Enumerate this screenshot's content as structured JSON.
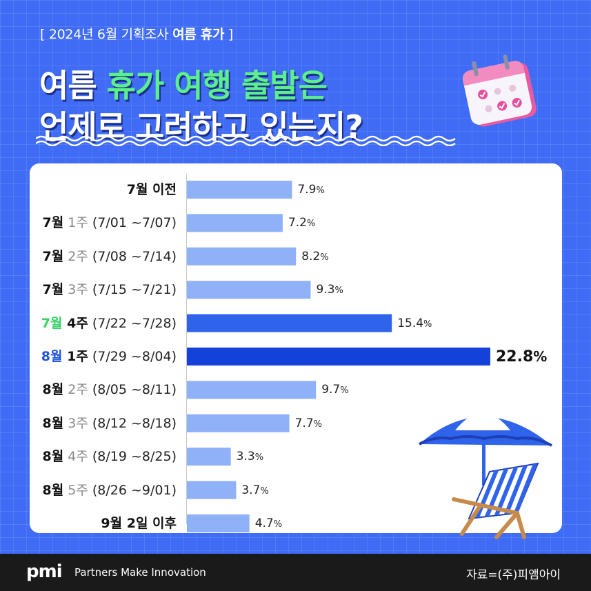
{
  "header": {
    "tag_prefix": "[ 2024년 6월 기획조사 ",
    "tag_bold": "여름 휴가",
    "tag_suffix": " ]",
    "title_line1_white": "여름 ",
    "title_line1_green": "휴가 여행 출발은",
    "title_line2": "언제로 고려하고 있는지?"
  },
  "colors": {
    "background": "#3f6bf5",
    "bar_normal": "#8fb1f7",
    "bar_highlight": "#2f63ea",
    "bar_top": "#1441d9",
    "green_accent": "#5cf08c"
  },
  "chart_data": {
    "type": "bar",
    "orientation": "horizontal",
    "categories": [
      "7월 이전",
      "7월 1주 (7/01 ~7/07)",
      "7월 2주 (7/08 ~7/14)",
      "7월 3주 (7/15 ~7/21)",
      "7월 4주 (7/22 ~7/28)",
      "8월 1주 (7/29 ~8/04)",
      "8월 2주 (8/05 ~8/11)",
      "8월 3주 (8/12 ~8/18)",
      "8월 4주 (8/19 ~8/25)",
      "8월 5주 (8/26 ~9/01)",
      "9월 2일 이후"
    ],
    "values": [
      7.9,
      7.2,
      8.2,
      9.3,
      15.4,
      22.8,
      9.7,
      7.7,
      3.3,
      3.7,
      4.7
    ],
    "value_labels": [
      "7.9",
      "7.2",
      "8.2",
      "9.3",
      "15.4",
      "22.8",
      "9.7",
      "7.7",
      "3.3",
      "3.7",
      "4.7"
    ],
    "unit": "%",
    "title": "",
    "xlabel": "",
    "ylabel": "",
    "grid": false,
    "legend": "none"
  },
  "row_labels": [
    {
      "month": "7월 이전",
      "week": "",
      "range": ""
    },
    {
      "month": "7월",
      "week": "1주",
      "range": "(7/01 ~7/07)"
    },
    {
      "month": "7월",
      "week": "2주",
      "range": "(7/08 ~7/14)"
    },
    {
      "month": "7월",
      "week": "3주",
      "range": "(7/15 ~7/21)"
    },
    {
      "month": "7월",
      "week": "4주",
      "range": "(7/22 ~7/28)"
    },
    {
      "month": "8월",
      "week": "1주",
      "range": "(7/29 ~8/04)"
    },
    {
      "month": "8월",
      "week": "2주",
      "range": "(8/05 ~8/11)"
    },
    {
      "month": "8월",
      "week": "3주",
      "range": "(8/12 ~8/18)"
    },
    {
      "month": "8월",
      "week": "4주",
      "range": "(8/19 ~8/25)"
    },
    {
      "month": "8월",
      "week": "5주",
      "range": "(8/26 ~9/01)"
    },
    {
      "month": "9월 2일 이후",
      "week": "",
      "range": ""
    }
  ],
  "footer": {
    "logo": "pmi",
    "tagline": "Partners Make Innovation",
    "source": "자료=(주)피앰아이"
  },
  "icons": [
    "calendar-icon",
    "wave-decoration",
    "beach-umbrella-icon",
    "beach-chair-icon"
  ]
}
